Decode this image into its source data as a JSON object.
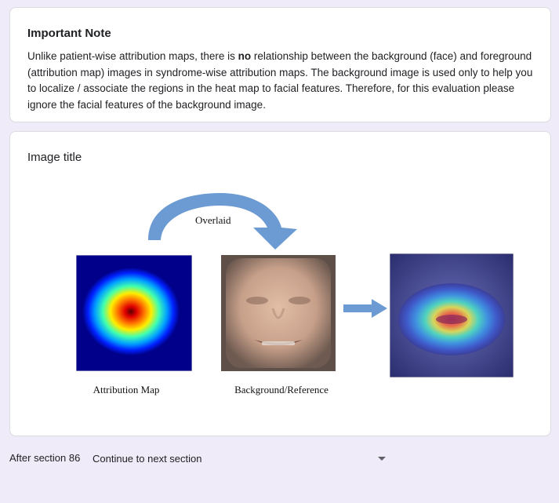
{
  "note": {
    "title": "Important Note",
    "body_pre": "Unlike patient-wise attribution maps, there is ",
    "body_bold": "no",
    "body_post": " relationship between the background (face) and foreground (attribution map) images in syndrome-wise attribution maps. The background image is used only to help you to localize / associate the regions in the heat map to facial features.  Therefore, for this evaluation please ignore the facial features of the background image."
  },
  "image_section": {
    "title": "Image title",
    "overlaid_label": "Overlaid",
    "attribution_label": "Attribution Map",
    "background_label": "Background/Reference"
  },
  "footer": {
    "after_label": "After section 86",
    "select_value": "Continue to next section"
  },
  "colors": {
    "page_bg": "#f0ebf8",
    "arrow": "#6b9bd2",
    "heatmap_bg": "#00008b"
  }
}
